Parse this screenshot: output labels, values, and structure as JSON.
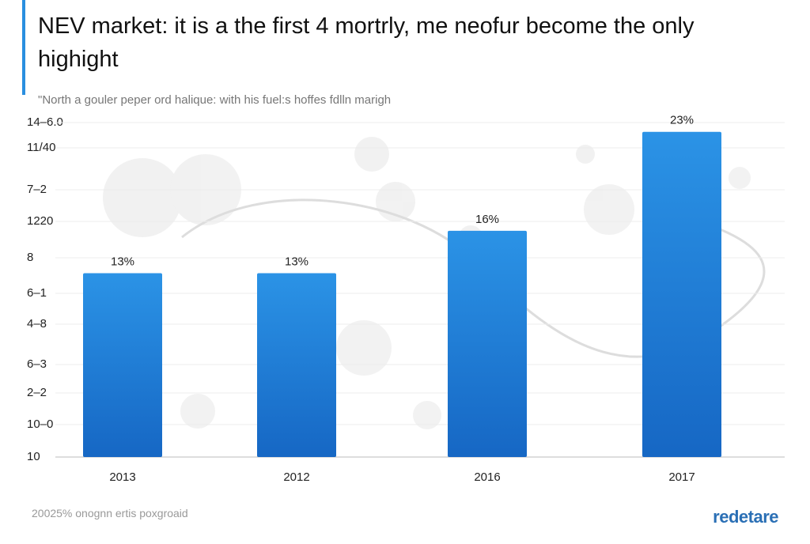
{
  "chart_data": {
    "type": "bar",
    "title": "NEV market: it is a the first 4 mortrly, me neofur become the only highight",
    "subtitle": "\"North a gouler peper ord halique: with his fuel:s hoffes fdlln marigh",
    "y_axis_labels": [
      "14–6.0",
      "11/40",
      "7–2",
      "1220",
      "8",
      "6–1",
      "4–8",
      "6–3",
      "2–2",
      "10–0",
      "10"
    ],
    "categories": [
      "2013",
      "2012",
      "2016",
      "2017"
    ],
    "values": [
      13,
      13,
      16,
      23
    ],
    "value_labels": [
      "13%",
      "13%",
      "16%",
      "23%"
    ],
    "color": "#1e7fd6",
    "ylim": [
      0,
      25
    ],
    "grid": true,
    "footer": "20025% onognn ertis poxgroaid",
    "brand": "redetare"
  }
}
